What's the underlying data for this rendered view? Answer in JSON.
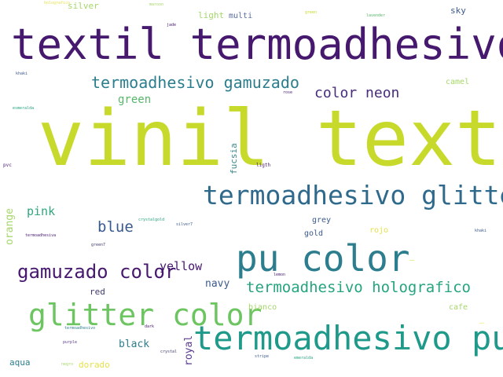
{
  "title": "word cloud",
  "palette": {
    "lime": "#c7d92a",
    "purple": "#46186e",
    "teal": "#2c7e8e",
    "blue": "#3b5a8c",
    "green": "#56b66a",
    "sea": "#25a47f",
    "yellow": "#e6e14a",
    "light": "#a6d76a",
    "grey": "#8a8f96"
  },
  "words": [
    {
      "text": "vinil textil",
      "color": "#c7d92a"
    },
    {
      "text": "textil termoadhesivo",
      "color": "#46186e"
    },
    {
      "text": "termoadhesivo glitter",
      "color": "#2f6a8c"
    },
    {
      "text": "pu color",
      "color": "#2c7e8e"
    },
    {
      "text": "termoadhesivo pu",
      "color": "#1f9a8a"
    },
    {
      "text": "glitter color",
      "color": "#6cc560"
    },
    {
      "text": "gamuzado color",
      "color": "#46186e"
    },
    {
      "text": "termoadhesivo gamuzado",
      "color": "#2c7e8e"
    },
    {
      "text": "termoadhesivo holografico",
      "color": "#25a47f"
    },
    {
      "text": "color neon",
      "color": "#472c7a"
    },
    {
      "text": "blue",
      "color": "#3b5a8c"
    },
    {
      "text": "pink",
      "color": "#2fa77c"
    },
    {
      "text": "green",
      "color": "#56b66a"
    },
    {
      "text": "yellow",
      "color": "#46186e"
    },
    {
      "text": "navy",
      "color": "#3b5a8c"
    },
    {
      "text": "red",
      "color": "#3b3b6e"
    },
    {
      "text": "black",
      "color": "#2c7e8e"
    },
    {
      "text": "royal",
      "color": "#5b3d8f"
    },
    {
      "text": "aqua",
      "color": "#2c7e8e"
    },
    {
      "text": "dorado",
      "color": "#e6e14a"
    },
    {
      "text": "orange",
      "color": "#a6d76a"
    },
    {
      "text": "fucsia",
      "color": "#3b8a8c"
    },
    {
      "text": "light",
      "color": "#a6d76a"
    },
    {
      "text": "multi",
      "color": "#5b6ea0"
    },
    {
      "text": "silver",
      "color": "#a6d76a"
    },
    {
      "text": "sky",
      "color": "#3b5a8c"
    },
    {
      "text": "camel",
      "color": "#a6d76a"
    },
    {
      "text": "grey",
      "color": "#3b5a8c"
    },
    {
      "text": "gold",
      "color": "#3b5a8c"
    },
    {
      "text": "rojo",
      "color": "#e6e14a"
    },
    {
      "text": "bianco",
      "color": "#a6d76a"
    },
    {
      "text": "cafe",
      "color": "#a6d76a"
    },
    {
      "text": "holografico",
      "color": "#e6e14a"
    },
    {
      "text": "maroon",
      "color": "#a6d76a"
    },
    {
      "text": "jade",
      "color": "#46186e"
    },
    {
      "text": "green",
      "color": "#c7d92a"
    },
    {
      "text": "lavender",
      "color": "#56b66a"
    },
    {
      "text": "khaki",
      "color": "#3b5a8c"
    },
    {
      "text": "rose",
      "color": "#46186e"
    },
    {
      "text": "esmeralda",
      "color": "#25a47f"
    },
    {
      "text": "pvc",
      "color": "#46186e"
    },
    {
      "text": "ligth",
      "color": "#46186e"
    },
    {
      "text": "crystalgold",
      "color": "#25a47f"
    },
    {
      "text": "silver7",
      "color": "#3b5a8c"
    },
    {
      "text": "termoadhesiva",
      "color": "#46186e"
    },
    {
      "text": "green7",
      "color": "#3b3b6e"
    },
    {
      "text": "khaki",
      "color": "#3b5a8c"
    },
    {
      "text": "lemon",
      "color": "#46186e"
    },
    {
      "text": "termoadhesivo",
      "color": "#2c7e8e"
    },
    {
      "text": "dark",
      "color": "#46186e"
    },
    {
      "text": "crystal",
      "color": "#3b3b6e"
    },
    {
      "text": "purple",
      "color": "#5b3d8f"
    },
    {
      "text": "negro",
      "color": "#a6d76a"
    },
    {
      "text": "stripe",
      "color": "#3b5a8c"
    },
    {
      "text": "emeralda",
      "color": "#25a47f"
    }
  ]
}
